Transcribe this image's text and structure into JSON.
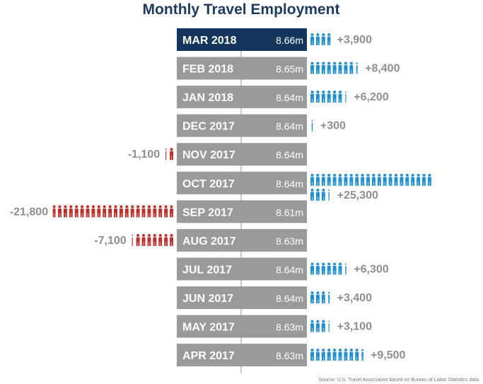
{
  "chart_data": {
    "type": "bar",
    "title": "Monthly Travel Employment",
    "categories": [
      "MAR 2018",
      "FEB 2018",
      "JAN 2018",
      "DEC 2017",
      "NOV 2017",
      "OCT 2017",
      "SEP 2017",
      "AUG 2017",
      "JUL 2017",
      "JUN 2017",
      "MAY 2017",
      "APR 2017"
    ],
    "employment_labels": [
      "8.66m",
      "8.65m",
      "8.64m",
      "8.64m",
      "8.64m",
      "8.64m",
      "8.61m",
      "8.63m",
      "8.64m",
      "8.64m",
      "8.63m",
      "8.63m"
    ],
    "change_values": [
      3900,
      8400,
      6200,
      300,
      -1100,
      25300,
      -21800,
      -7100,
      6300,
      3400,
      3100,
      9500
    ],
    "change_labels": [
      "+3,900",
      "+8,400",
      "+6,200",
      "+300",
      "-1,100",
      "+25,300",
      "-21,800",
      "-7,100",
      "+6,300",
      "+3,400",
      "+3,100",
      "+9,500"
    ],
    "source": "Source: U.S. Travel Association based on Bureau of Labor Statistics data",
    "colors": {
      "highlight_bar": "#14365c",
      "bar": "#9a9a9a",
      "positive_icon": "#1f8fd0",
      "negative_icon": "#c2302e",
      "label": "#8e8e8e",
      "title": "#1d3a5f"
    },
    "icon": "person-icon",
    "people_per_icon": 1000
  }
}
